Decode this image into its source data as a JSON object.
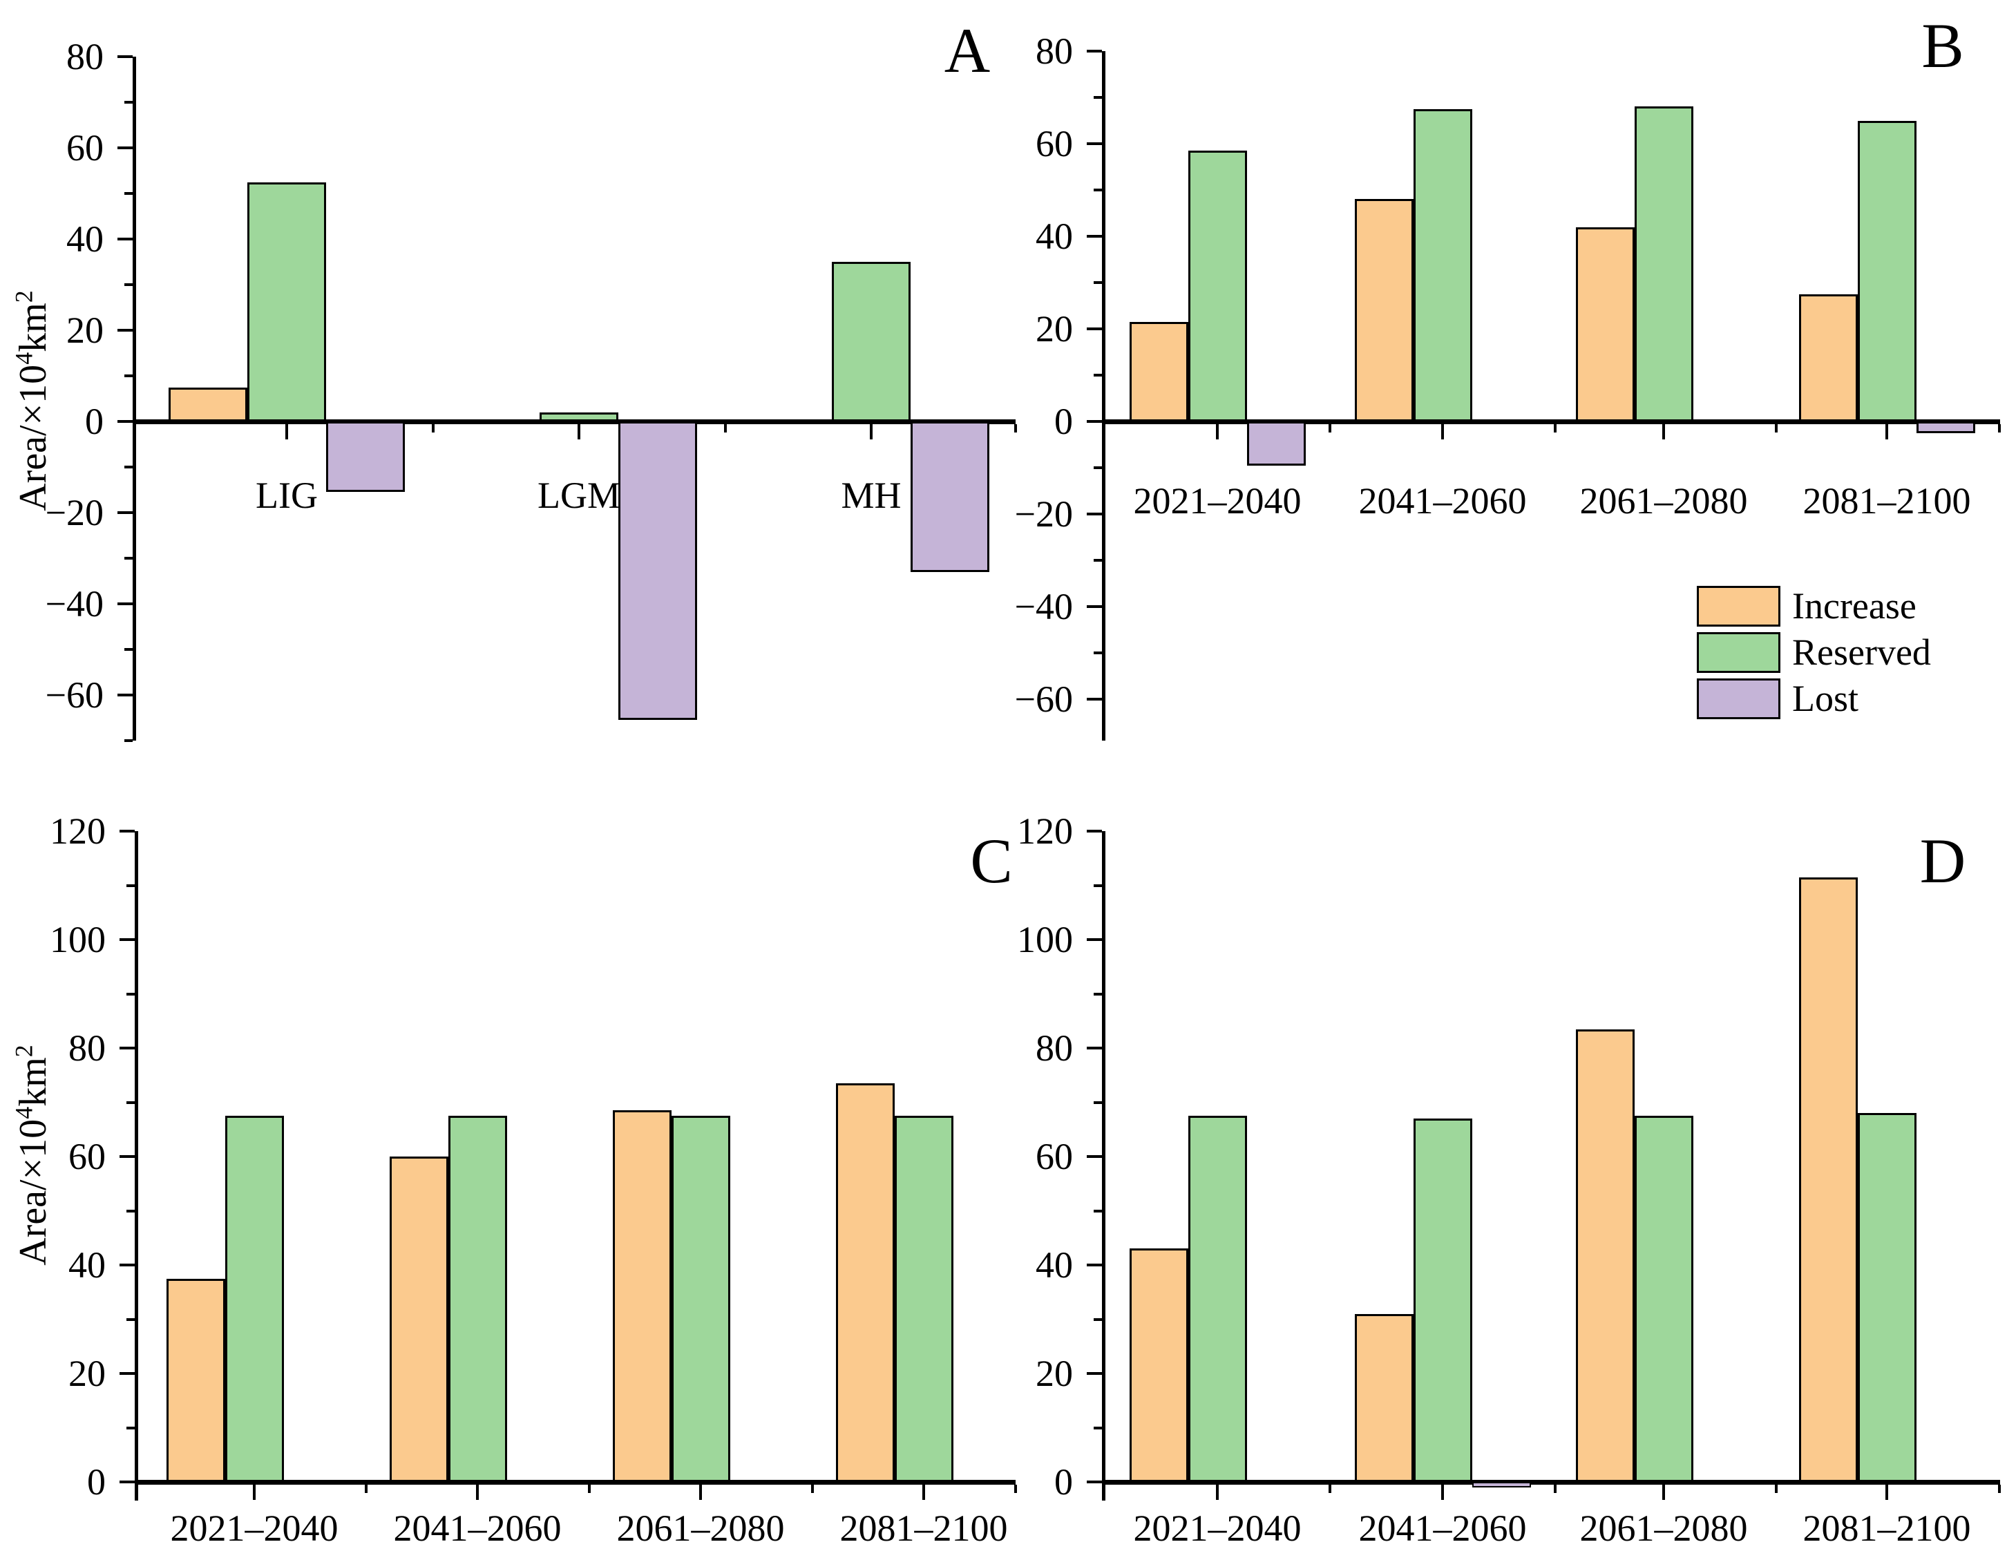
{
  "page": {
    "background": "#ffffff"
  },
  "colors": {
    "increase": "#FBCA8E",
    "reserved": "#9ED79B",
    "lost": "#C5B4D7",
    "outline": "#000000",
    "axis": "#000000",
    "text": "#000000"
  },
  "legend": {
    "position": "inside-panel-B-right",
    "items": [
      {
        "label": "Increase",
        "color": "#FBCA8E"
      },
      {
        "label": "Reserved",
        "color": "#9ED79B"
      },
      {
        "label": "Lost",
        "color": "#C5B4D7"
      }
    ]
  },
  "chart_data": [
    {
      "type": "bar",
      "panel_letter": "A",
      "ylabel": "Area/×10⁴km²",
      "ylabel_parts": {
        "prefix": "Area/×10",
        "sup1": "4",
        "mid": "km",
        "sup2": "2"
      },
      "ylim": [
        -70,
        80
      ],
      "ytick_labeled": [
        80,
        60,
        40,
        20,
        0,
        -20,
        -40,
        -60
      ],
      "ytick_minor_step": 10,
      "grid": false,
      "categories": [
        "LIG",
        "LGM",
        "MH"
      ],
      "series": [
        {
          "name": "Increase",
          "values": [
            7.5,
            0,
            0
          ]
        },
        {
          "name": "Reserved",
          "values": [
            52.5,
            2,
            35
          ]
        },
        {
          "name": "Lost",
          "values": [
            -15.5,
            -65.5,
            -33
          ]
        }
      ]
    },
    {
      "type": "bar",
      "panel_letter": "B",
      "ylabel": "",
      "ylim": [
        -70,
        80
      ],
      "ytick_labeled": [
        80,
        60,
        40,
        20,
        0,
        -20,
        -40,
        -60
      ],
      "ytick_minor_step": 10,
      "grid": false,
      "has_legend": true,
      "categories": [
        "2021–2040",
        "2041–2060",
        "2061–2080",
        "2081–2100"
      ],
      "series": [
        {
          "name": "Increase",
          "values": [
            21.5,
            48,
            42,
            27.5
          ]
        },
        {
          "name": "Reserved",
          "values": [
            58.5,
            67.5,
            68,
            65
          ]
        },
        {
          "name": "Lost",
          "values": [
            -9.5,
            0,
            0,
            -2.5
          ]
        }
      ]
    },
    {
      "type": "bar",
      "panel_letter": "C",
      "ylabel": "Area/×10⁴km²",
      "ylabel_parts": {
        "prefix": "Area/×10",
        "sup1": "4",
        "mid": "km",
        "sup2": "2"
      },
      "ylim": [
        0,
        120
      ],
      "ytick_labeled": [
        120,
        100,
        80,
        60,
        40,
        20,
        0
      ],
      "ytick_minor_step": 10,
      "grid": false,
      "categories": [
        "2021–2040",
        "2041–2060",
        "2061–2080",
        "2081–2100"
      ],
      "series": [
        {
          "name": "Increase",
          "values": [
            37.5,
            60,
            68.5,
            73.5
          ]
        },
        {
          "name": "Reserved",
          "values": [
            67.5,
            67.5,
            67.5,
            67.5
          ]
        },
        {
          "name": "Lost",
          "values": [
            0,
            0,
            0,
            0
          ]
        }
      ]
    },
    {
      "type": "bar",
      "panel_letter": "D",
      "ylabel": "",
      "ylim": [
        0,
        120
      ],
      "ytick_labeled": [
        120,
        100,
        80,
        60,
        40,
        20,
        0
      ],
      "ytick_minor_step": 10,
      "grid": false,
      "categories": [
        "2021–2040",
        "2041–2060",
        "2061–2080",
        "2081–2100"
      ],
      "series": [
        {
          "name": "Increase",
          "values": [
            43,
            31,
            83.5,
            111.5
          ]
        },
        {
          "name": "Reserved",
          "values": [
            67.5,
            67,
            67.5,
            68
          ]
        },
        {
          "name": "Lost",
          "values": [
            -0.5,
            -1,
            0,
            0
          ]
        }
      ]
    }
  ]
}
